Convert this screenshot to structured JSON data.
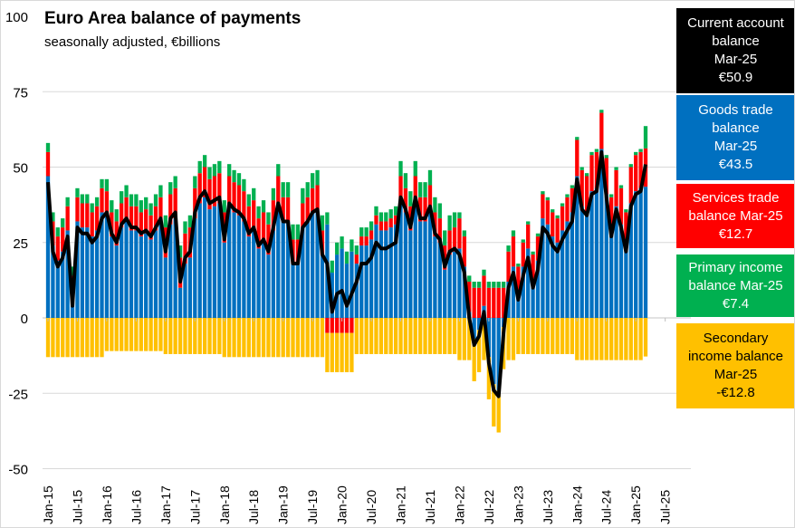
{
  "chart_data": {
    "type": "bar",
    "stacked": true,
    "title": "Euro Area balance of payments",
    "subtitle": "seasonally adjusted, €billions",
    "ylim": [
      -50,
      100
    ],
    "yticks": [
      "100",
      "75",
      "50",
      "25",
      "0",
      "-25",
      "-50"
    ],
    "ytick_values": [
      100,
      75,
      50,
      25,
      0,
      -25,
      -50
    ],
    "xticks": [
      "Jan-15",
      "Jul-15",
      "Jan-16",
      "Jul-16",
      "Jan-17",
      "Jul-17",
      "Jan-18",
      "Jul-18",
      "Jan-19",
      "Jul-19",
      "Jan-20",
      "Jul-20",
      "Jan-21",
      "Jul-21",
      "Jan-22",
      "Jul-22",
      "Jan-23",
      "Jul-23",
      "Jan-24",
      "Jul-24",
      "Jan-25",
      "Jul-25"
    ],
    "x_start": "Jan-15",
    "x_end": "Mar-25",
    "colors": {
      "current": "#000000",
      "goods": "#0070C0",
      "services": "#FF0000",
      "primary": "#00B050",
      "secondary": "#FFC000"
    },
    "series": [
      {
        "name": "Goods trade balance",
        "key": "goods",
        "values": [
          47,
          24,
          19,
          22,
          29,
          6,
          32,
          30,
          30,
          27,
          29,
          35,
          34,
          27,
          24,
          30,
          32,
          29,
          29,
          27,
          28,
          26,
          29,
          32,
          20,
          31,
          33,
          10,
          18,
          20,
          33,
          38,
          40,
          36,
          37,
          38,
          25,
          37,
          35,
          34,
          32,
          27,
          29,
          23,
          25,
          21,
          29,
          37,
          32,
          32,
          18,
          18,
          30,
          32,
          35,
          36,
          21,
          31,
          15,
          21,
          23,
          18,
          22,
          18,
          24,
          24,
          26,
          31,
          29,
          29,
          30,
          31,
          39,
          35,
          29,
          39,
          32,
          32,
          36,
          27,
          25,
          16,
          21,
          22,
          23,
          17,
          2,
          -7,
          -4,
          4,
          -13,
          -22,
          -24,
          -3,
          12,
          17,
          9,
          17,
          23,
          13,
          19,
          33,
          31,
          27,
          25,
          29,
          32,
          35,
          47,
          37,
          35,
          42,
          43,
          56,
          41,
          28,
          37,
          31,
          23,
          38,
          42,
          43,
          43.5
        ]
      },
      {
        "name": "Services trade balance",
        "key": "services",
        "values": [
          8,
          8,
          8,
          8,
          8,
          8,
          8,
          8,
          8,
          8,
          8,
          8,
          8,
          8,
          8,
          8,
          8,
          8,
          8,
          8,
          8,
          8,
          8,
          8,
          10,
          10,
          10,
          10,
          10,
          10,
          10,
          10,
          10,
          10,
          10,
          10,
          10,
          10,
          10,
          10,
          10,
          10,
          10,
          10,
          10,
          10,
          10,
          10,
          8,
          8,
          8,
          8,
          8,
          8,
          8,
          8,
          8,
          -5,
          -5,
          -5,
          -5,
          -5,
          -5,
          3,
          3,
          3,
          3,
          3,
          3,
          3,
          3,
          3,
          8,
          8,
          8,
          8,
          8,
          8,
          8,
          8,
          8,
          8,
          8,
          8,
          10,
          10,
          10,
          10,
          10,
          10,
          10,
          10,
          10,
          10,
          10,
          10,
          8,
          8,
          8,
          8,
          8,
          8,
          8,
          8,
          8,
          8,
          8,
          8,
          12,
          12,
          12,
          12,
          12,
          12,
          12,
          12,
          12,
          12,
          12,
          12,
          12,
          12,
          12.7
        ]
      },
      {
        "name": "Primary income balance",
        "key": "primary",
        "values": [
          3,
          3,
          3,
          3,
          3,
          3,
          3,
          3,
          3,
          3,
          3,
          3,
          4,
          4,
          4,
          4,
          4,
          4,
          4,
          4,
          4,
          4,
          4,
          4,
          4,
          4,
          4,
          4,
          4,
          4,
          4,
          4,
          4,
          4,
          4,
          4,
          4,
          4,
          4,
          4,
          4,
          4,
          4,
          4,
          4,
          4,
          4,
          4,
          5,
          5,
          5,
          5,
          5,
          5,
          5,
          5,
          5,
          4,
          4,
          4,
          4,
          4,
          4,
          3,
          3,
          3,
          3,
          3,
          3,
          3,
          3,
          3,
          5,
          5,
          5,
          5,
          5,
          5,
          5,
          5,
          5,
          5,
          5,
          5,
          2,
          2,
          2,
          2,
          2,
          2,
          2,
          2,
          2,
          2,
          2,
          2,
          1,
          1,
          1,
          1,
          1,
          1,
          1,
          1,
          1,
          1,
          1,
          1,
          1,
          1,
          1,
          1,
          1,
          1,
          1,
          1,
          1,
          1,
          1,
          1,
          1,
          1,
          7.4
        ]
      },
      {
        "name": "Secondary income balance",
        "key": "secondary",
        "values": [
          -13,
          -13,
          -13,
          -13,
          -13,
          -13,
          -13,
          -13,
          -13,
          -13,
          -13,
          -13,
          -11,
          -11,
          -11,
          -11,
          -11,
          -11,
          -11,
          -11,
          -11,
          -11,
          -11,
          -11,
          -12,
          -12,
          -12,
          -12,
          -12,
          -12,
          -12,
          -12,
          -12,
          -12,
          -12,
          -12,
          -13,
          -13,
          -13,
          -13,
          -13,
          -13,
          -13,
          -13,
          -13,
          -13,
          -13,
          -13,
          -13,
          -13,
          -13,
          -13,
          -13,
          -13,
          -13,
          -13,
          -13,
          -13,
          -13,
          -13,
          -13,
          -13,
          -13,
          -12,
          -12,
          -12,
          -12,
          -12,
          -12,
          -12,
          -12,
          -12,
          -12,
          -12,
          -12,
          -12,
          -12,
          -12,
          -12,
          -12,
          -12,
          -12,
          -12,
          -12,
          -14,
          -14,
          -14,
          -14,
          -14,
          -14,
          -14,
          -14,
          -14,
          -14,
          -14,
          -14,
          -12,
          -12,
          -12,
          -12,
          -12,
          -12,
          -12,
          -12,
          -12,
          -12,
          -12,
          -12,
          -14,
          -14,
          -14,
          -14,
          -14,
          -14,
          -14,
          -14,
          -14,
          -14,
          -14,
          -14,
          -14,
          -14,
          -12.8
        ]
      },
      {
        "name": "Current account balance",
        "key": "current",
        "type": "line",
        "values": [
          45,
          22,
          17,
          20,
          27,
          4,
          30,
          28,
          28,
          25,
          27,
          33,
          35,
          28,
          25,
          31,
          33,
          30,
          30,
          28,
          29,
          27,
          30,
          33,
          22,
          33,
          35,
          12,
          20,
          22,
          35,
          40,
          42,
          38,
          39,
          40,
          26,
          38,
          36,
          35,
          33,
          28,
          30,
          24,
          26,
          22,
          30,
          38,
          32,
          32,
          18,
          18,
          30,
          32,
          35,
          36,
          21,
          18,
          2,
          8,
          9,
          4,
          8,
          12,
          18,
          18,
          20,
          25,
          23,
          23,
          24,
          25,
          40,
          36,
          30,
          40,
          33,
          33,
          37,
          28,
          26,
          17,
          22,
          23,
          21,
          15,
          0,
          -9,
          -6,
          2,
          -15,
          -24,
          -26,
          -5,
          10,
          15,
          6,
          14,
          20,
          10,
          16,
          30,
          28,
          24,
          22,
          26,
          29,
          32,
          46,
          36,
          34,
          41,
          42,
          55,
          40,
          27,
          36,
          30,
          22,
          37,
          41,
          42,
          50.9
        ]
      }
    ]
  },
  "legend": [
    {
      "key": "current",
      "lines": [
        "Current account",
        "balance",
        "Mar-25",
        "€50.9"
      ]
    },
    {
      "key": "goods",
      "lines": [
        "Goods trade",
        "balance",
        "Mar-25",
        "€43.5"
      ]
    },
    {
      "key": "services",
      "lines": [
        "Services trade",
        "balance Mar-25",
        "€12.7"
      ]
    },
    {
      "key": "primary",
      "lines": [
        "Primary income",
        "balance Mar-25",
        "€7.4"
      ]
    },
    {
      "key": "secondary",
      "lines": [
        "Secondary",
        "income balance",
        "Mar-25",
        "-€12.8"
      ]
    }
  ]
}
